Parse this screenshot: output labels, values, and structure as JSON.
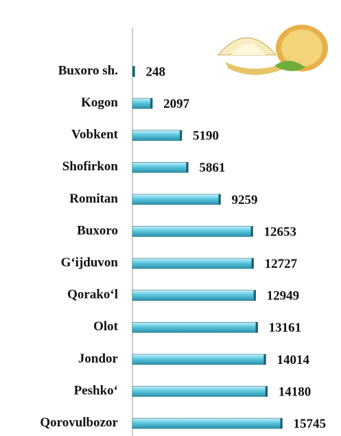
{
  "chart_data": {
    "type": "bar",
    "orientation": "horizontal",
    "categories": [
      "Buxoro sh.",
      "Kogon",
      "Vobkent",
      "Shofirkon",
      "Romitan",
      "Buxoro",
      "G‘ijduvon",
      "Qorako‘l",
      "Olot",
      "Jondor",
      "Peshko‘",
      "Qorovulbozor"
    ],
    "values": [
      248,
      2097,
      5190,
      5861,
      9259,
      12653,
      12727,
      12949,
      13161,
      14014,
      14180,
      15745
    ],
    "color": "#5bc8e0",
    "xlim": [
      0,
      16000
    ]
  }
}
